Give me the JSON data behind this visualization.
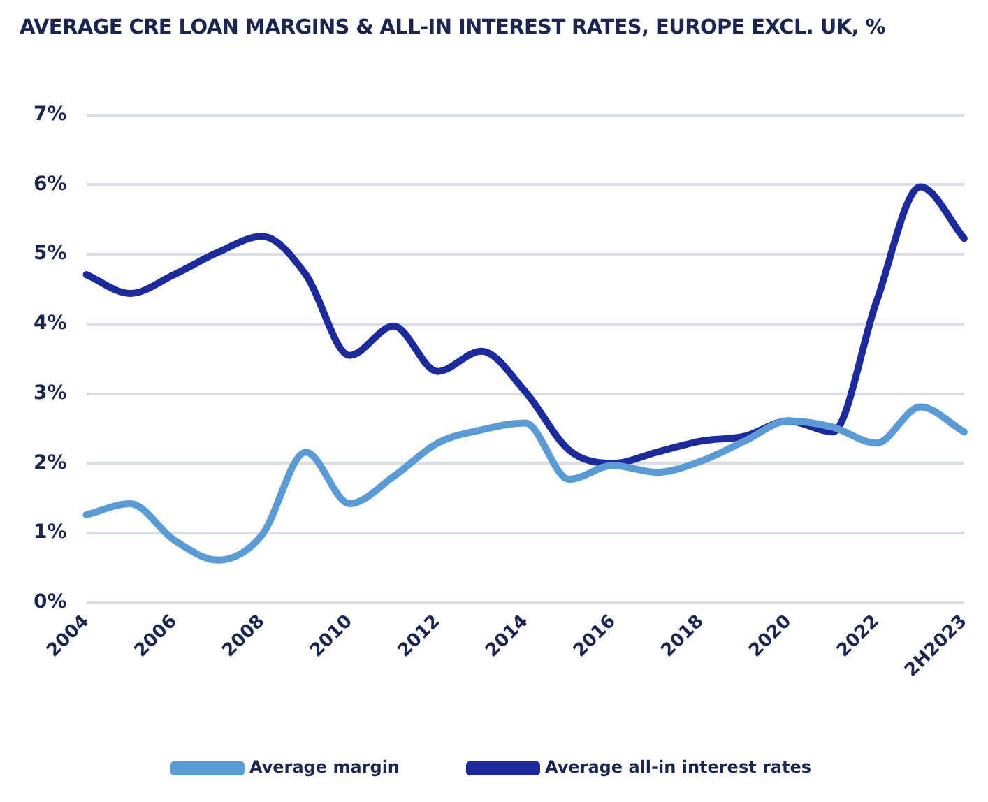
{
  "chart_data": {
    "type": "line",
    "title": "AVERAGE CRE LOAN MARGINS & ALL-IN INTEREST RATES, EUROPE EXCL. UK, %",
    "categories": [
      "2004",
      null,
      "2006",
      null,
      "2008",
      null,
      "2010",
      null,
      "2012",
      null,
      "2014",
      null,
      "2016",
      null,
      "2018",
      null,
      "2020",
      null,
      "2022",
      null,
      "2H2023"
    ],
    "series": [
      {
        "name": "Average margin",
        "color": "#5b9bd5",
        "values": [
          1.26,
          1.42,
          0.9,
          0.61,
          0.97,
          2.16,
          1.42,
          1.81,
          2.29,
          2.48,
          2.58,
          1.77,
          1.97,
          1.87,
          2.03,
          2.32,
          2.61,
          2.52,
          2.29,
          2.81,
          2.45
        ]
      },
      {
        "name": "Average all-in interest rates",
        "color": "#1c2a9c",
        "values": [
          4.71,
          4.44,
          4.71,
          5.03,
          5.26,
          4.71,
          3.55,
          3.97,
          3.32,
          3.61,
          3.03,
          2.19,
          2.0,
          2.16,
          2.32,
          2.39,
          2.61,
          2.45,
          4.32,
          5.97,
          5.23
        ]
      }
    ],
    "ylim": [
      0,
      7
    ],
    "yticks": [
      {
        "value": 0,
        "label": "0%"
      },
      {
        "value": 1,
        "label": "1%"
      },
      {
        "value": 2,
        "label": "2%"
      },
      {
        "value": 3,
        "label": "3%"
      },
      {
        "value": 4,
        "label": "4%"
      },
      {
        "value": 5,
        "label": "5%"
      },
      {
        "value": 6,
        "label": "6%"
      },
      {
        "value": 7,
        "label": "7%"
      }
    ],
    "grid": "y",
    "legend": "bottom",
    "marker": "none",
    "line_style": "solid"
  }
}
